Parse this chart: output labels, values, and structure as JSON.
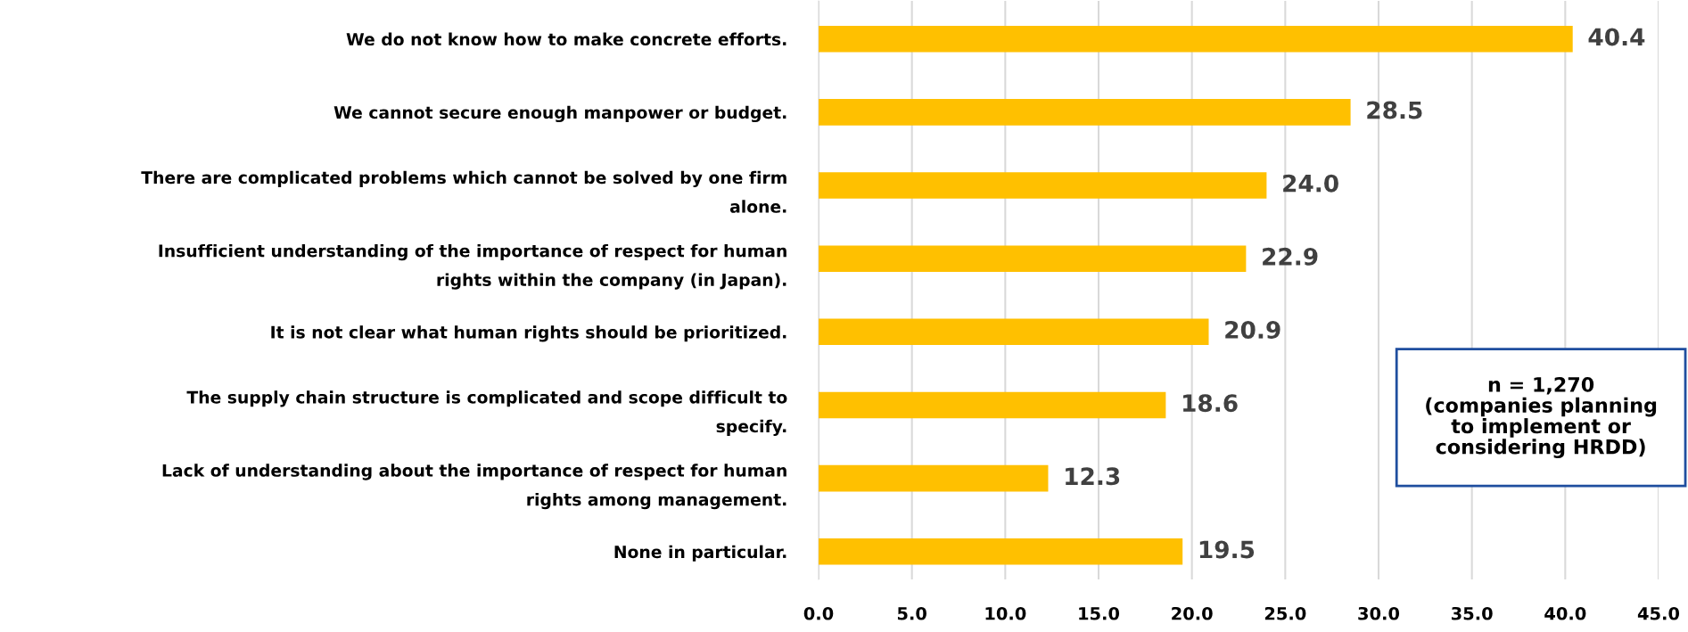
{
  "chart_data": {
    "type": "bar",
    "orientation": "horizontal",
    "categories": [
      "We do not know how to make concrete efforts.",
      "We cannot secure enough manpower or budget.",
      "There are complicated problems which cannot be solved by one firm\nalone.",
      "Insufficient understanding of the importance of respect for human\nrights within the company (in Japan).",
      "It is not clear what human rights should be prioritized.",
      "The supply chain structure is complicated and scope difficult to\nspecify.",
      "Lack of understanding about the importance of respect for human\nrights among management.",
      "None in particular."
    ],
    "values": [
      40.4,
      28.5,
      24.0,
      22.9,
      20.9,
      18.6,
      12.3,
      19.5
    ],
    "color": "#ffc000",
    "xlim": [
      0,
      45
    ],
    "xticks": [
      {
        "value": 0,
        "label": "0.0"
      },
      {
        "value": 5,
        "label": "5.0"
      },
      {
        "value": 10,
        "label": "10.0"
      },
      {
        "value": 15,
        "label": "15.0"
      },
      {
        "value": 20,
        "label": "20.0"
      },
      {
        "value": 25,
        "label": "25.0"
      },
      {
        "value": 30,
        "label": "30.0"
      },
      {
        "value": 35,
        "label": "35.0"
      },
      {
        "value": 40,
        "label": "40.0"
      },
      {
        "value": 45,
        "label": "45.0"
      }
    ],
    "grid": "x",
    "value_labels": [
      "40.4",
      "28.5",
      "24.0",
      "22.9",
      "20.9",
      "18.6",
      "12.3",
      "19.5"
    ],
    "annotations": [
      "n = 1,270\n(companies planning\nto implement or\nconsidering HRDD)"
    ]
  }
}
